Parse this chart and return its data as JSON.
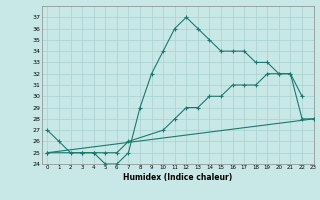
{
  "xlabel": "Humidex (Indice chaleur)",
  "line_color": "#1a7a6e",
  "background_color": "#c8e8e8",
  "grid_color": "#a8d0d0",
  "ylim": [
    24,
    38
  ],
  "xlim": [
    -0.5,
    23
  ],
  "yticks": [
    24,
    25,
    26,
    27,
    28,
    29,
    30,
    31,
    32,
    33,
    34,
    35,
    36,
    37
  ],
  "xticks": [
    0,
    1,
    2,
    3,
    4,
    5,
    6,
    7,
    8,
    9,
    10,
    11,
    12,
    13,
    14,
    15,
    16,
    17,
    18,
    19,
    20,
    21,
    22,
    23
  ],
  "line1_x": [
    0,
    1,
    2,
    3,
    4,
    5,
    6,
    7,
    8,
    9,
    10,
    11,
    12,
    13,
    14,
    15,
    16,
    17,
    18,
    19,
    20,
    21,
    22
  ],
  "line1_y": [
    27,
    26,
    25,
    25,
    25,
    24,
    24,
    25,
    29,
    32,
    34,
    36,
    37,
    36,
    35,
    34,
    34,
    34,
    33,
    33,
    32,
    32,
    30
  ],
  "line2_x": [
    0,
    3,
    4,
    5,
    6,
    7,
    10,
    11,
    12,
    13,
    14,
    15,
    16,
    17,
    18,
    19,
    20,
    21,
    22,
    23
  ],
  "line2_y": [
    25,
    25,
    25,
    25,
    25,
    26,
    27,
    28,
    29,
    29,
    30,
    30,
    31,
    31,
    31,
    32,
    32,
    32,
    28,
    28
  ],
  "line3_x": [
    0,
    23
  ],
  "line3_y": [
    25,
    28
  ]
}
